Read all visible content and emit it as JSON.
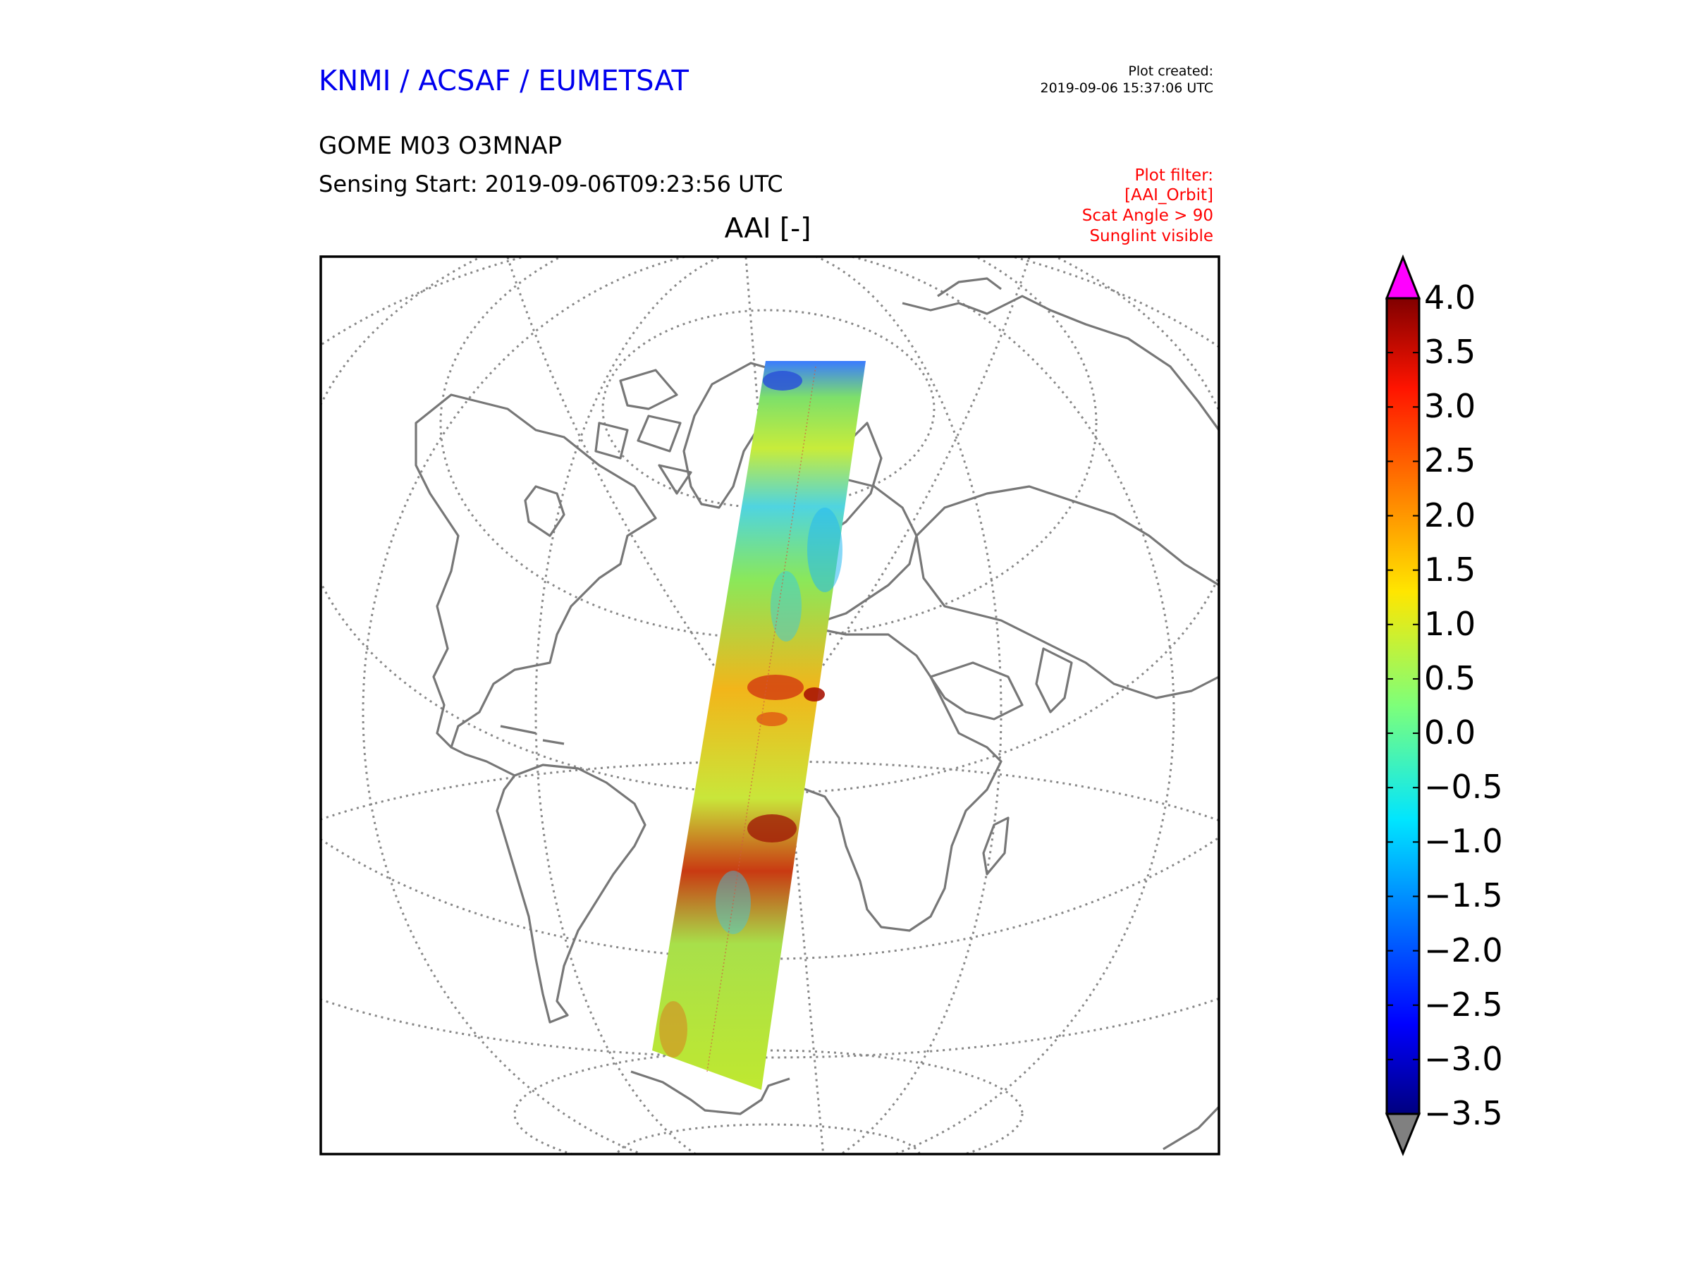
{
  "header": {
    "organization": "KNMI / ACSAF / EUMETSAT",
    "plot_created_label": "Plot created:",
    "plot_created_date": "2019-09-06 15:37:06 UTC",
    "product": "GOME M03 O3MNAP",
    "sensing_start": "Sensing Start: 2019-09-06T09:23:56 UTC"
  },
  "plot_filter": [
    "Plot filter:",
    "[AAI_Orbit]",
    "Scat Angle > 90",
    "Sunglint visible"
  ],
  "map": {
    "variable_title": "AAI [-]",
    "projection": "orthographic",
    "coastline_color": "#777777",
    "graticule_color": "#888888",
    "swath_background_color": "#bfe830"
  },
  "colorbar": {
    "min": -3.5,
    "max": 4.0,
    "ticks": [
      "4.0",
      "3.5",
      "3.0",
      "2.5",
      "2.0",
      "1.5",
      "1.0",
      "0.5",
      "0.0",
      "−0.5",
      "−1.0",
      "−1.5",
      "−2.0",
      "−2.5",
      "−3.0",
      "−3.5"
    ],
    "extend_max_color": "#ff00ff",
    "extend_min_color": "#808080",
    "colormap": "jet"
  }
}
